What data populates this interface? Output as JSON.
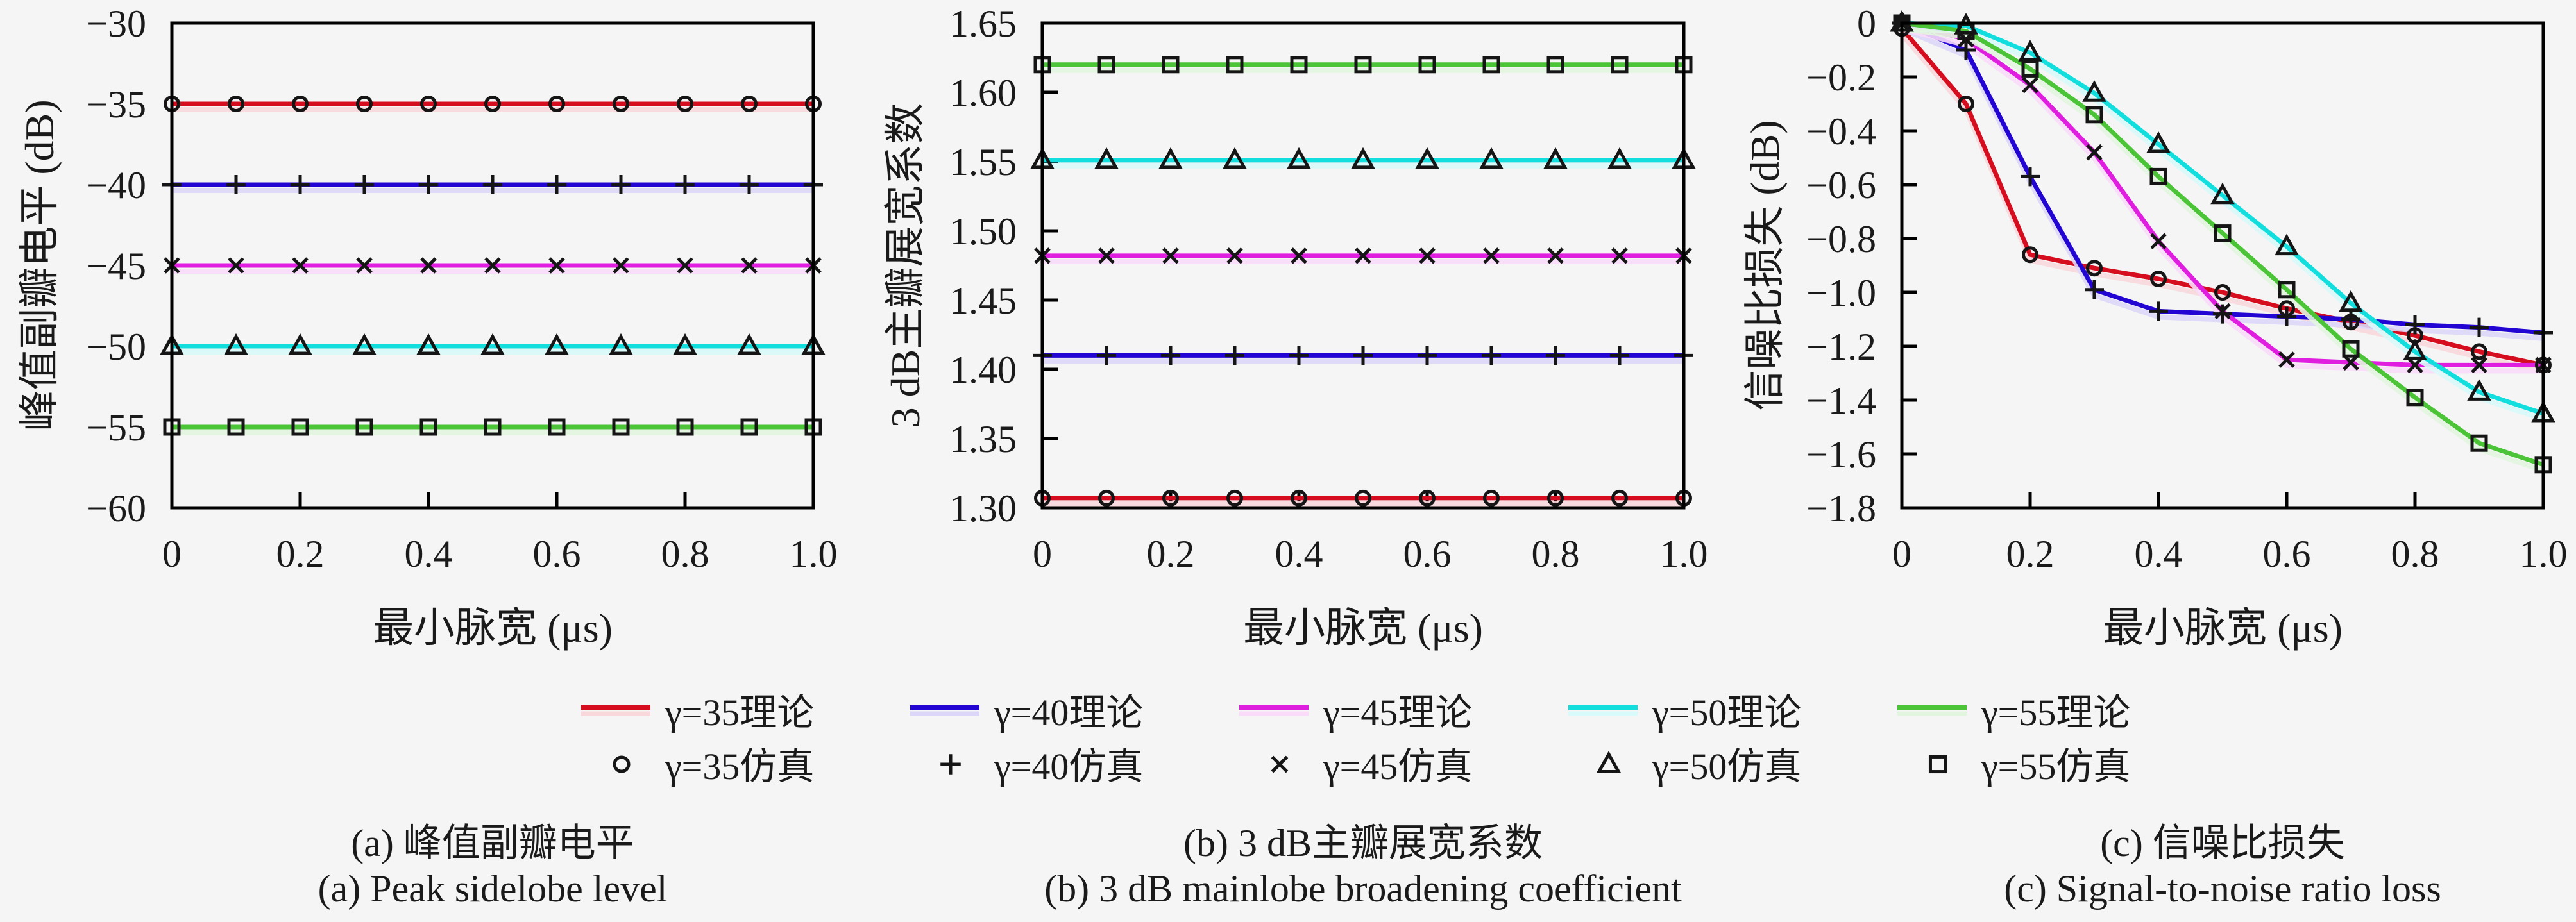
{
  "figure": {
    "background": "#f5f5f6",
    "marker_color": "#151515",
    "axis_color": "#000000"
  },
  "legend": {
    "theory": [
      {
        "label": "γ=35理论",
        "color": "#d50d1e"
      },
      {
        "label": "γ=40理论",
        "color": "#2205d2"
      },
      {
        "label": "γ=45理论",
        "color": "#e01edf"
      },
      {
        "label": "γ=50理论",
        "color": "#12dede"
      },
      {
        "label": "γ=55理论",
        "color": "#4cc438"
      }
    ],
    "simulation": [
      {
        "label": "γ=35仿真",
        "marker": "circle"
      },
      {
        "label": "γ=40仿真",
        "marker": "plus"
      },
      {
        "label": "γ=45仿真",
        "marker": "x"
      },
      {
        "label": "γ=50仿真",
        "marker": "triangle"
      },
      {
        "label": "γ=55仿真",
        "marker": "square"
      }
    ]
  },
  "chart_data": [
    {
      "id": "a",
      "type": "line",
      "title_zh": "(a) 峰值副瓣电平",
      "title_en": "(a) Peak sidelobe level",
      "xlabel": "最小脉宽 (μs)",
      "ylabel": "峰值副瓣电平 (dB)",
      "xlim": [
        0,
        1.0
      ],
      "ylim": [
        -60,
        -30
      ],
      "xtick_labels": [
        "0",
        "0.2",
        "0.4",
        "0.6",
        "0.8",
        "1.0"
      ],
      "xtick_values": [
        0,
        0.2,
        0.4,
        0.6,
        0.8,
        1.0
      ],
      "ytick_labels": [
        "−30",
        "−35",
        "−40",
        "−45",
        "−50",
        "−55",
        "−60"
      ],
      "ytick_values": [
        -30,
        -35,
        -40,
        -45,
        -50,
        -55,
        -60
      ],
      "grid": false,
      "x": [
        0,
        0.1,
        0.2,
        0.3,
        0.4,
        0.5,
        0.6,
        0.7,
        0.8,
        0.9,
        1.0
      ],
      "series": [
        {
          "gamma": 35,
          "theory_label": "γ=35理论",
          "sim_label": "γ=35仿真",
          "color": "#d50d1e",
          "marker": "circle",
          "values": [
            -35,
            -35,
            -35,
            -35,
            -35,
            -35,
            -35,
            -35,
            -35,
            -35,
            -35
          ]
        },
        {
          "gamma": 40,
          "theory_label": "γ=40理论",
          "sim_label": "γ=40仿真",
          "color": "#2205d2",
          "marker": "plus",
          "values": [
            -40,
            -40,
            -40,
            -40,
            -40,
            -40,
            -40,
            -40,
            -40,
            -40,
            -40
          ]
        },
        {
          "gamma": 45,
          "theory_label": "γ=45理论",
          "sim_label": "γ=45仿真",
          "color": "#e01edf",
          "marker": "x",
          "values": [
            -45,
            -45,
            -45,
            -45,
            -45,
            -45,
            -45,
            -45,
            -45,
            -45,
            -45
          ]
        },
        {
          "gamma": 50,
          "theory_label": "γ=50理论",
          "sim_label": "γ=50仿真",
          "color": "#12dede",
          "marker": "triangle",
          "values": [
            -50,
            -50,
            -50,
            -50,
            -50,
            -50,
            -50,
            -50,
            -50,
            -50,
            -50
          ]
        },
        {
          "gamma": 55,
          "theory_label": "γ=55理论",
          "sim_label": "γ=55仿真",
          "color": "#4cc438",
          "marker": "square",
          "values": [
            -55,
            -55,
            -55,
            -55,
            -55,
            -55,
            -55,
            -55,
            -55,
            -55,
            -55
          ]
        }
      ]
    },
    {
      "id": "b",
      "type": "line",
      "title_zh": "(b) 3 dB主瓣展宽系数",
      "title_en": "(b) 3 dB mainlobe broadening coefficient",
      "xlabel": "最小脉宽 (μs)",
      "ylabel": "3 dB主瓣展宽系数",
      "xlim": [
        0,
        1.0
      ],
      "ylim": [
        1.3,
        1.65
      ],
      "xtick_labels": [
        "0",
        "0.2",
        "0.4",
        "0.6",
        "0.8",
        "1.0"
      ],
      "xtick_values": [
        0,
        0.2,
        0.4,
        0.6,
        0.8,
        1.0
      ],
      "ytick_labels": [
        "1.65",
        "1.60",
        "1.55",
        "1.50",
        "1.45",
        "1.40",
        "1.35",
        "1.30"
      ],
      "ytick_values": [
        1.65,
        1.6,
        1.55,
        1.5,
        1.45,
        1.4,
        1.35,
        1.3
      ],
      "grid": false,
      "x": [
        0,
        0.1,
        0.2,
        0.3,
        0.4,
        0.5,
        0.6,
        0.7,
        0.8,
        0.9,
        1.0
      ],
      "series": [
        {
          "gamma": 35,
          "theory_label": "γ=35理论",
          "sim_label": "γ=35仿真",
          "color": "#d50d1e",
          "marker": "circle",
          "values": [
            1.307,
            1.307,
            1.307,
            1.307,
            1.307,
            1.307,
            1.307,
            1.307,
            1.307,
            1.307,
            1.307
          ]
        },
        {
          "gamma": 40,
          "theory_label": "γ=40理论",
          "sim_label": "γ=40仿真",
          "color": "#2205d2",
          "marker": "plus",
          "values": [
            1.41,
            1.41,
            1.41,
            1.41,
            1.41,
            1.41,
            1.41,
            1.41,
            1.41,
            1.41,
            1.41
          ]
        },
        {
          "gamma": 45,
          "theory_label": "γ=45理论",
          "sim_label": "γ=45仿真",
          "color": "#e01edf",
          "marker": "x",
          "values": [
            1.482,
            1.482,
            1.482,
            1.482,
            1.482,
            1.482,
            1.482,
            1.482,
            1.482,
            1.482,
            1.482
          ]
        },
        {
          "gamma": 50,
          "theory_label": "γ=50理论",
          "sim_label": "γ=50仿真",
          "color": "#12dede",
          "marker": "triangle",
          "values": [
            1.551,
            1.551,
            1.551,
            1.551,
            1.551,
            1.551,
            1.551,
            1.551,
            1.551,
            1.551,
            1.551
          ]
        },
        {
          "gamma": 55,
          "theory_label": "γ=55理论",
          "sim_label": "γ=55仿真",
          "color": "#4cc438",
          "marker": "square",
          "values": [
            1.62,
            1.62,
            1.62,
            1.62,
            1.62,
            1.62,
            1.62,
            1.62,
            1.62,
            1.62,
            1.62
          ]
        }
      ]
    },
    {
      "id": "c",
      "type": "line",
      "title_zh": "(c) 信噪比损失",
      "title_en": "(c) Signal-to-noise ratio loss",
      "xlabel": "最小脉宽 (μs)",
      "ylabel": "信噪比损失 (dB)",
      "xlim": [
        0,
        1.0
      ],
      "ylim": [
        -1.8,
        0
      ],
      "xtick_labels": [
        "0",
        "0.2",
        "0.4",
        "0.6",
        "0.8",
        "1.0"
      ],
      "xtick_values": [
        0,
        0.2,
        0.4,
        0.6,
        0.8,
        1.0
      ],
      "ytick_labels": [
        "0",
        "−0.2",
        "−0.4",
        "−0.6",
        "−0.8",
        "−1.0",
        "−1.2",
        "−1.4",
        "−1.6",
        "−1.8"
      ],
      "ytick_values": [
        0,
        -0.2,
        -0.4,
        -0.6,
        -0.8,
        -1.0,
        -1.2,
        -1.4,
        -1.6,
        -1.8
      ],
      "grid": false,
      "x": [
        0,
        0.1,
        0.2,
        0.3,
        0.4,
        0.5,
        0.6,
        0.7,
        0.8,
        0.9,
        1.0
      ],
      "series": [
        {
          "gamma": 35,
          "theory_label": "γ=35理论",
          "sim_label": "γ=35仿真",
          "color": "#d50d1e",
          "marker": "circle",
          "values": [
            -0.02,
            -0.3,
            -0.86,
            -0.91,
            -0.95,
            -1.0,
            -1.06,
            -1.11,
            -1.16,
            -1.22,
            -1.27
          ]
        },
        {
          "gamma": 40,
          "theory_label": "γ=40理论",
          "sim_label": "γ=40仿真",
          "color": "#2205d2",
          "marker": "plus",
          "values": [
            0,
            -0.1,
            -0.57,
            -0.99,
            -1.07,
            -1.08,
            -1.09,
            -1.1,
            -1.12,
            -1.13,
            -1.15
          ]
        },
        {
          "gamma": 45,
          "theory_label": "γ=45理论",
          "sim_label": "γ=45仿真",
          "color": "#e01edf",
          "marker": "x",
          "values": [
            0,
            -0.06,
            -0.23,
            -0.48,
            -0.81,
            -1.07,
            -1.25,
            -1.26,
            -1.27,
            -1.27,
            -1.27
          ]
        },
        {
          "gamma": 50,
          "theory_label": "γ=50理论",
          "sim_label": "γ=50仿真",
          "color": "#12dede",
          "marker": "triangle",
          "values": [
            0,
            -0.01,
            -0.11,
            -0.26,
            -0.45,
            -0.64,
            -0.83,
            -1.04,
            -1.22,
            -1.37,
            -1.45
          ]
        },
        {
          "gamma": 55,
          "theory_label": "γ=55理论",
          "sim_label": "γ=55仿真",
          "color": "#4cc438",
          "marker": "square",
          "values": [
            0,
            -0.03,
            -0.17,
            -0.34,
            -0.57,
            -0.78,
            -0.99,
            -1.21,
            -1.39,
            -1.56,
            -1.64
          ]
        }
      ]
    }
  ]
}
